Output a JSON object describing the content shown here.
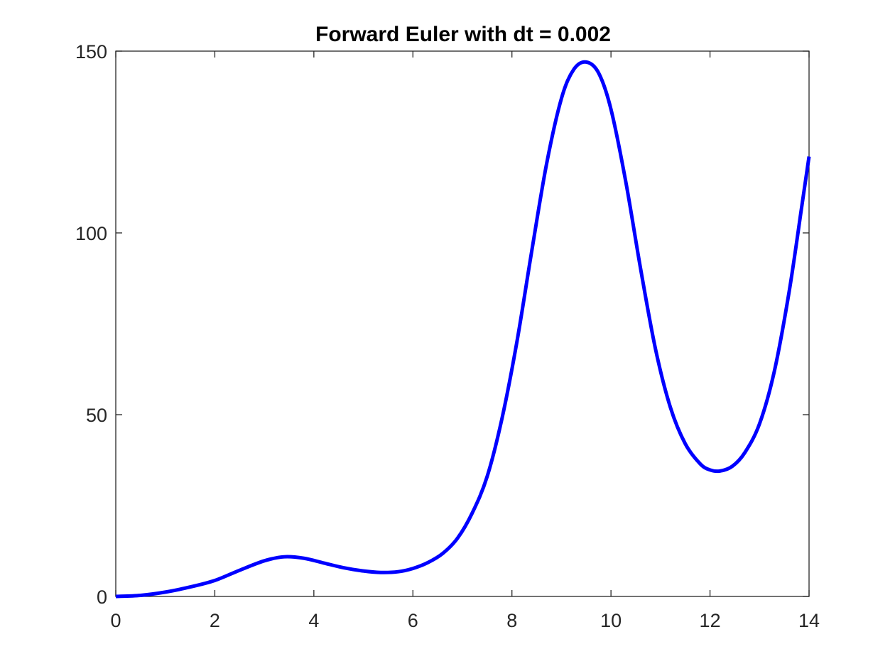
{
  "chart_data": {
    "type": "line",
    "title": "Forward Euler with dt = 0.002",
    "xlabel": "",
    "ylabel": "",
    "xlim": [
      0,
      14
    ],
    "ylim": [
      0,
      150
    ],
    "xticks": [
      0,
      2,
      4,
      6,
      8,
      10,
      12,
      14
    ],
    "yticks": [
      0,
      50,
      100,
      150
    ],
    "xtick_labels": [
      "0",
      "2",
      "4",
      "6",
      "8",
      "10",
      "12",
      "14"
    ],
    "ytick_labels": [
      "0",
      "50",
      "100",
      "150"
    ],
    "grid": false,
    "box": true,
    "line_color": "#0000ff",
    "series": [
      {
        "x": [
          0,
          0.5,
          1.0,
          1.5,
          2.0,
          2.5,
          3.0,
          3.4,
          3.8,
          4.2,
          4.6,
          5.0,
          5.35,
          5.7,
          6.0,
          6.3,
          6.6,
          6.9,
          7.2,
          7.5,
          7.8,
          8.1,
          8.4,
          8.7,
          9.0,
          9.25,
          9.5,
          9.75,
          10.0,
          10.3,
          10.6,
          10.9,
          11.2,
          11.5,
          11.8,
          12.0,
          12.2,
          12.45,
          12.7,
          13.0,
          13.3,
          13.6,
          13.85,
          14.0
        ],
        "y": [
          0,
          0.3,
          1.2,
          2.6,
          4.4,
          7.2,
          9.8,
          10.9,
          10.5,
          9.2,
          7.9,
          7.0,
          6.6,
          6.8,
          7.7,
          9.3,
          11.8,
          16.0,
          23.0,
          33.0,
          49.0,
          70.0,
          95.0,
          119.0,
          137.0,
          145.0,
          147.0,
          144.0,
          134.0,
          114.0,
          90.0,
          68.0,
          52.0,
          42.0,
          36.5,
          34.8,
          34.5,
          35.8,
          39.5,
          47.5,
          62.0,
          84.0,
          107.0,
          121.0
        ]
      }
    ]
  }
}
